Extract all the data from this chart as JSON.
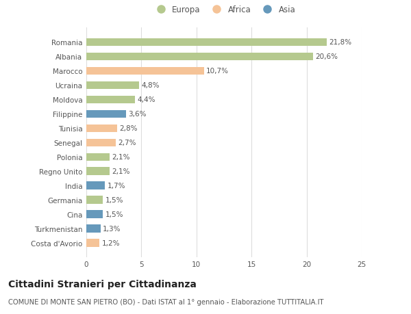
{
  "categories": [
    "Costa d'Avorio",
    "Turkmenistan",
    "Cina",
    "Germania",
    "India",
    "Regno Unito",
    "Polonia",
    "Senegal",
    "Tunisia",
    "Filippine",
    "Moldova",
    "Ucraina",
    "Marocco",
    "Albania",
    "Romania"
  ],
  "values": [
    1.2,
    1.3,
    1.5,
    1.5,
    1.7,
    2.1,
    2.1,
    2.7,
    2.8,
    3.6,
    4.4,
    4.8,
    10.7,
    20.6,
    21.8
  ],
  "continents": [
    "Africa",
    "Asia",
    "Asia",
    "Europa",
    "Asia",
    "Europa",
    "Europa",
    "Africa",
    "Africa",
    "Asia",
    "Europa",
    "Europa",
    "Africa",
    "Europa",
    "Europa"
  ],
  "labels": [
    "1,2%",
    "1,3%",
    "1,5%",
    "1,5%",
    "1,7%",
    "2,1%",
    "2,1%",
    "2,7%",
    "2,8%",
    "3,6%",
    "4,4%",
    "4,8%",
    "10,7%",
    "20,6%",
    "21,8%"
  ],
  "colors": {
    "Europa": "#b5c98e",
    "Africa": "#f5c397",
    "Asia": "#6699bb"
  },
  "xlim": [
    0,
    25
  ],
  "xticks": [
    0,
    5,
    10,
    15,
    20,
    25
  ],
  "title": "Cittadini Stranieri per Cittadinanza",
  "subtitle": "COMUNE DI MONTE SAN PIETRO (BO) - Dati ISTAT al 1° gennaio - Elaborazione TUTTITALIA.IT",
  "background_color": "#ffffff",
  "grid_color": "#dddddd",
  "bar_height": 0.55,
  "label_fontsize": 7.5,
  "tick_fontsize": 7.5,
  "title_fontsize": 10,
  "subtitle_fontsize": 7.2,
  "legend_labels": [
    "Europa",
    "Africa",
    "Asia"
  ]
}
